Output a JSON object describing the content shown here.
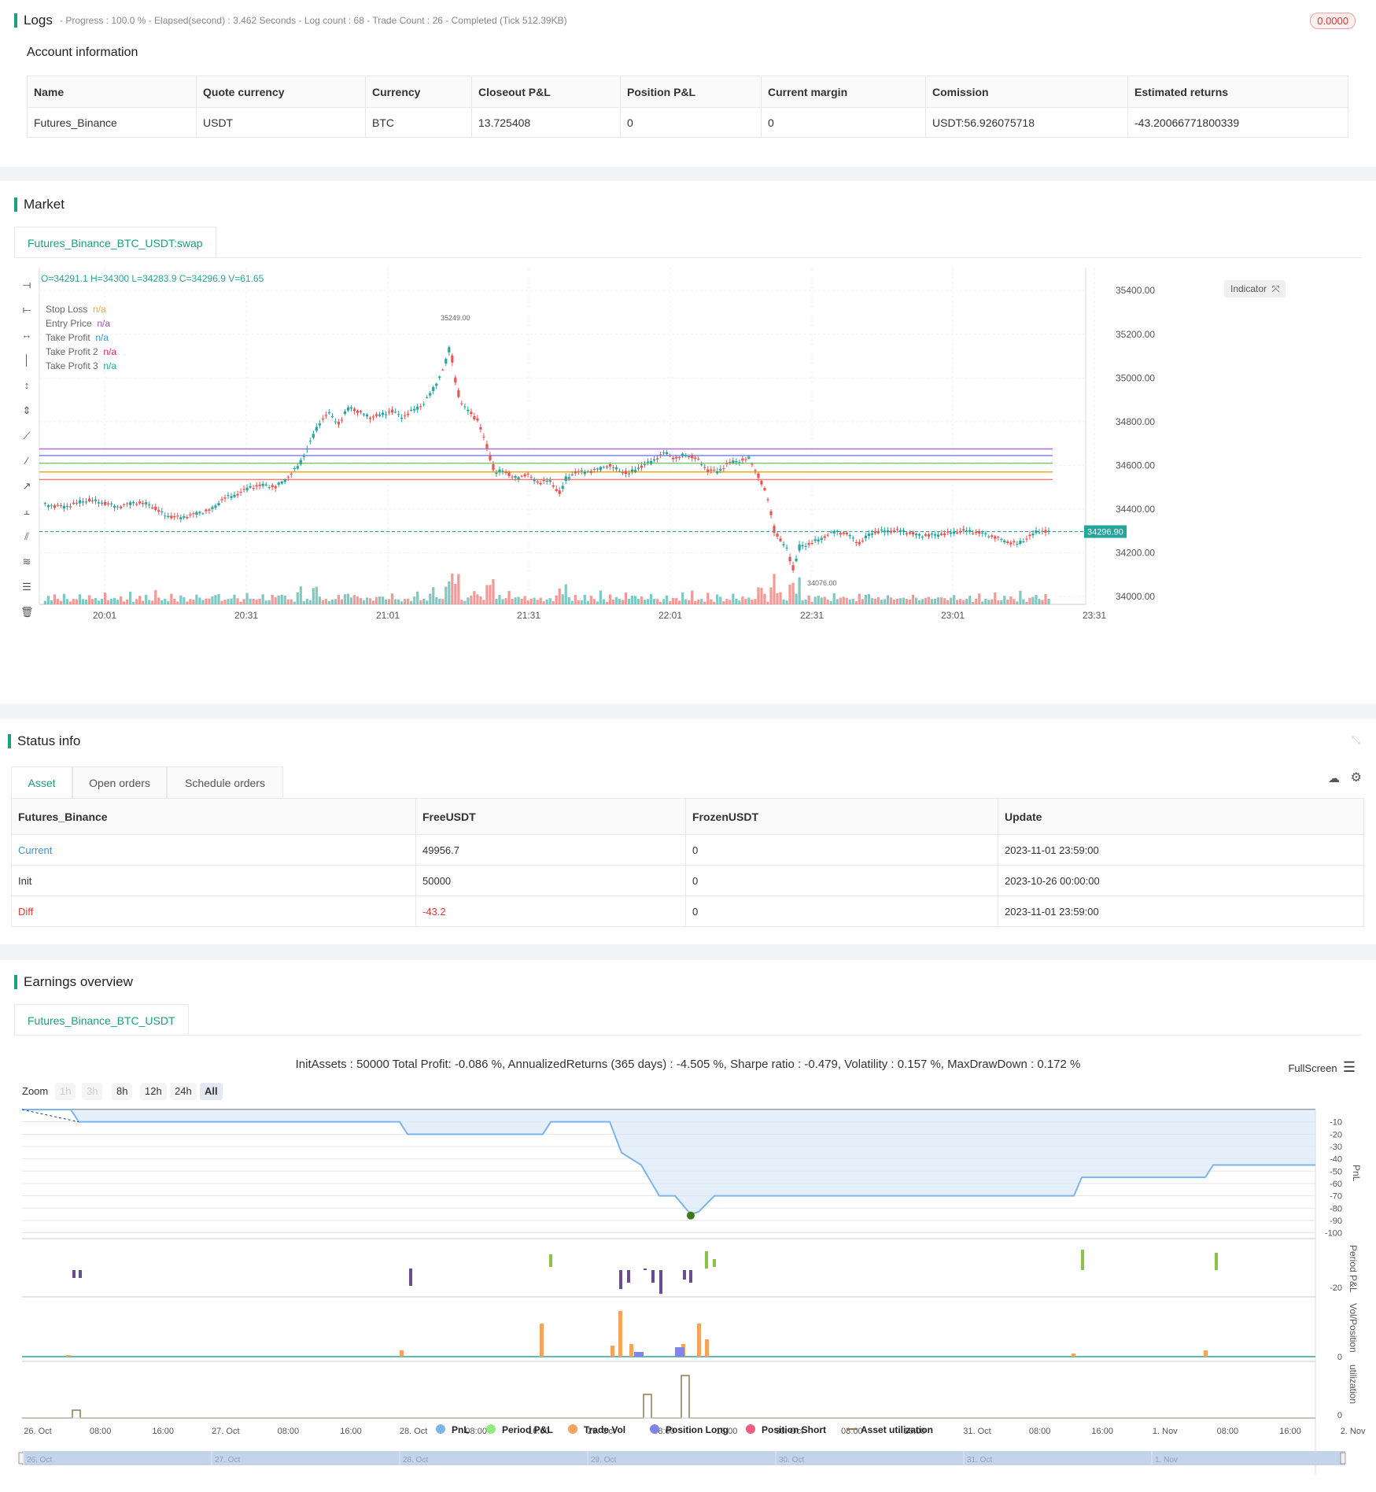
{
  "logs": {
    "title": "Logs",
    "status_line": "- Progress : 100.0 % - Elapsed(second) : 3.462  Seconds - Log count : 68 - Trade Count : 26 - Completed (Tick 512.39KB)",
    "badge": "0.0000",
    "account_title": "Account information",
    "account_headers": [
      "Name",
      "Quote currency",
      "Currency",
      "Closeout P&L",
      "Position P&L",
      "Current margin",
      "Comission",
      "Estimated returns"
    ],
    "account_row": [
      "Futures_Binance",
      "USDT",
      "BTC",
      "13.725408",
      "0",
      "0",
      "USDT:56.926075718",
      "-43.20066771800339"
    ]
  },
  "market": {
    "title": "Market",
    "tab": "Futures_Binance_BTC_USDT:swap",
    "ohlc": "O=34291.1 H=34300 L=34283.9 C=34296.9 V=61.65",
    "indicator_btn": "Indicator",
    "legend": [
      {
        "label": "Stop Loss",
        "value": "n/a",
        "color": "#f5a623"
      },
      {
        "label": "Entry Price",
        "value": "n/a",
        "color": "#9b59b6"
      },
      {
        "label": "Take Profit",
        "value": "n/a",
        "color": "#3498db"
      },
      {
        "label": "Take Profit 2",
        "value": "n/a",
        "color": "#e91e63"
      },
      {
        "label": "Take Profit 3",
        "value": "n/a",
        "color": "#26a69a"
      }
    ],
    "price_ticks": [
      "35400.00",
      "35200.00",
      "35000.00",
      "34800.00",
      "34600.00",
      "34400.00",
      "34200.00",
      "34000.00"
    ],
    "time_ticks": [
      "20:01",
      "20:31",
      "21:01",
      "21:31",
      "22:01",
      "22:31",
      "23:01",
      "23:31"
    ],
    "last_price": "34296.90",
    "high_label": "35249.00",
    "low_label": "34076.00"
  },
  "status": {
    "title": "Status info",
    "tabs": [
      "Asset",
      "Open orders",
      "Schedule orders"
    ],
    "headers": [
      "Futures_Binance",
      "FreeUSDT",
      "FrozenUSDT",
      "Update"
    ],
    "rows": [
      [
        "Current",
        "49956.7",
        "0",
        "2023-11-01 23:59:00"
      ],
      [
        "Init",
        "50000",
        "0",
        "2023-10-26 00:00:00"
      ],
      [
        "Diff",
        "-43.2",
        "0",
        "2023-11-01 23:59:00"
      ]
    ]
  },
  "earnings": {
    "title": "Earnings overview",
    "tab": "Futures_Binance_BTC_USDT",
    "summary": "InitAssets : 50000 Total Profit: -0.086 %, AnnualizedReturns (365 days) : -4.505 %, Sharpe ratio : -0.479, Volatility : 0.157 %, MaxDrawDown : 0.172 %",
    "fullscreen": "FullScreen",
    "zoom_label": "Zoom",
    "zoom_buttons": [
      "1h",
      "3h",
      "8h",
      "12h",
      "24h",
      "All"
    ],
    "pnl_ticks": [
      "-10",
      "-20",
      "-30",
      "-40",
      "-50",
      "-60",
      "-70",
      "-80",
      "-90",
      "-100"
    ],
    "axis_titles": [
      "PnL",
      "Period P&L",
      "Vol/Position",
      "utilization"
    ],
    "period_tick": "-20",
    "zero": "0",
    "x_ticks": [
      "26. Oct",
      "08:00",
      "16:00",
      "27. Oct",
      "08:00",
      "16:00",
      "28. Oct",
      "08:00",
      "16:00",
      "29. Oct",
      "08:00",
      "16:00",
      "30. Oct",
      "08:00",
      "16:00",
      "31. Oct",
      "08:00",
      "16:00",
      "1. Nov",
      "08:00",
      "16:00",
      "2. Nov"
    ],
    "legend": [
      {
        "label": "PnL",
        "color": "#7cb5ec"
      },
      {
        "label": "Period P&L",
        "color": "#90ed7d"
      },
      {
        "label": "Trade Vol",
        "color": "#f7a35c"
      },
      {
        "label": "Position Long",
        "color": "#8085e9"
      },
      {
        "label": "Position Short",
        "color": "#f15c80"
      },
      {
        "label": "Asset utilization",
        "color": "#8d7a4f"
      }
    ],
    "navigator_ticks": [
      "26. Oct",
      "27. Oct",
      "28. Oct",
      "29. Oct",
      "30. Oct",
      "31. Oct",
      "1. Nov"
    ]
  },
  "colors": {
    "accent": "#1aa07d",
    "up": "#26a69a",
    "down": "#ef5350"
  }
}
